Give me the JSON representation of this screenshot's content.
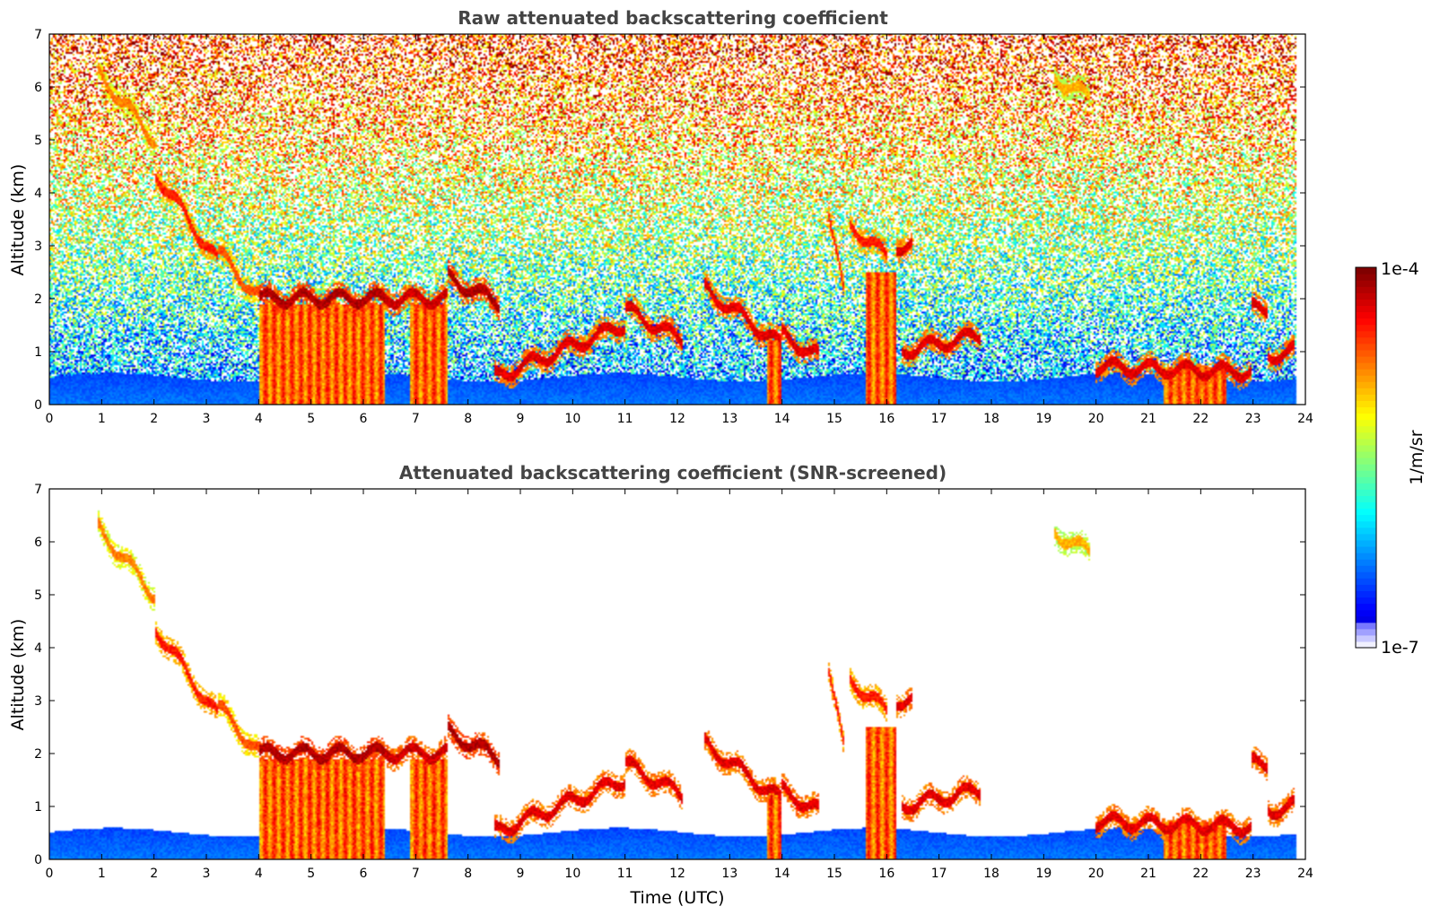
{
  "chart_data": [
    {
      "type": "heatmap",
      "title": "Raw attenuated backscattering coefficient",
      "xlabel": "",
      "ylabel": "Altitude (km)",
      "xlim": [
        0,
        24
      ],
      "ylim": [
        0,
        7
      ],
      "xticks": [
        "0",
        "1",
        "2",
        "3",
        "4",
        "5",
        "6",
        "7",
        "8",
        "9",
        "10",
        "11",
        "12",
        "13",
        "14",
        "15",
        "16",
        "17",
        "18",
        "19",
        "20",
        "21",
        "22",
        "23",
        "24"
      ],
      "yticks": [
        "0",
        "1",
        "2",
        "3",
        "4",
        "5",
        "6",
        "7"
      ],
      "grid": false,
      "screened": false,
      "features": {
        "boundary_layer_top_km": 0.5,
        "cloud_layers": [
          {
            "t0": 0.9,
            "t1": 2.0,
            "h0": 6.3,
            "h1": 5.0,
            "intensity": 0.75
          },
          {
            "t0": 2.0,
            "t1": 3.2,
            "h0": 4.4,
            "h1": 2.7,
            "intensity": 0.85
          },
          {
            "t0": 3.2,
            "t1": 4.0,
            "h0": 2.9,
            "h1": 2.0,
            "intensity": 0.8
          },
          {
            "t0": 4.0,
            "t1": 6.4,
            "h0": 2.0,
            "h1": 2.0,
            "intensity": 0.95
          },
          {
            "t0": 6.4,
            "t1": 7.6,
            "h0": 2.0,
            "h1": 2.0,
            "intensity": 0.92
          },
          {
            "t0": 7.6,
            "t1": 8.6,
            "h0": 2.4,
            "h1": 1.9,
            "intensity": 0.95
          },
          {
            "t0": 8.5,
            "t1": 11.0,
            "h0": 0.5,
            "h1": 1.5,
            "intensity": 0.9
          },
          {
            "t0": 11.0,
            "t1": 12.1,
            "h0": 1.8,
            "h1": 1.2,
            "intensity": 0.9
          },
          {
            "t0": 12.5,
            "t1": 14.0,
            "h0": 2.2,
            "h1": 1.1,
            "intensity": 0.9
          },
          {
            "t0": 14.0,
            "t1": 14.7,
            "h0": 1.3,
            "h1": 0.9,
            "intensity": 0.9
          },
          {
            "t0": 14.9,
            "t1": 15.2,
            "h0": 3.6,
            "h1": 2.0,
            "intensity": 0.85
          },
          {
            "t0": 15.3,
            "t1": 16.0,
            "h0": 3.4,
            "h1": 2.8,
            "intensity": 0.85
          },
          {
            "t0": 16.2,
            "t1": 16.5,
            "h0": 3.0,
            "h1": 3.0,
            "intensity": 0.9
          },
          {
            "t0": 16.3,
            "t1": 17.8,
            "h0": 1.0,
            "h1": 1.3,
            "intensity": 0.9
          },
          {
            "t0": 20.0,
            "t1": 23.0,
            "h0": 0.7,
            "h1": 0.6,
            "intensity": 0.9
          },
          {
            "t0": 23.0,
            "t1": 23.3,
            "h0": 1.8,
            "h1": 1.8,
            "intensity": 0.9
          },
          {
            "t0": 23.3,
            "t1": 23.8,
            "h0": 0.9,
            "h1": 1.0,
            "intensity": 0.9
          },
          {
            "t0": 19.2,
            "t1": 19.9,
            "h0": 6.2,
            "h1": 5.8,
            "intensity": 0.7
          }
        ],
        "precipitation_columns": [
          {
            "t0": 4.0,
            "t1": 6.4,
            "top_km": 1.9
          },
          {
            "t0": 6.9,
            "t1": 7.6,
            "top_km": 1.9
          },
          {
            "t0": 13.7,
            "t1": 14.0,
            "top_km": 1.2
          },
          {
            "t0": 15.6,
            "t1": 16.2,
            "top_km": 2.5
          },
          {
            "t0": 21.3,
            "t1": 22.5,
            "top_km": 0.7
          }
        ]
      }
    },
    {
      "type": "heatmap",
      "title": "Attenuated backscattering coefficient (SNR-screened)",
      "xlabel": "Time (UTC)",
      "ylabel": "Altitude (km)",
      "xlim": [
        0,
        24
      ],
      "ylim": [
        0,
        7
      ],
      "xticks": [
        "0",
        "1",
        "2",
        "3",
        "4",
        "5",
        "6",
        "7",
        "8",
        "9",
        "10",
        "11",
        "12",
        "13",
        "14",
        "15",
        "16",
        "17",
        "18",
        "19",
        "20",
        "21",
        "22",
        "23",
        "24"
      ],
      "yticks": [
        "0",
        "1",
        "2",
        "3",
        "4",
        "5",
        "6",
        "7"
      ],
      "grid": false,
      "screened": true
    }
  ],
  "colorbar": {
    "label": "1/m/sr",
    "min_label": "1e-7",
    "max_label": "1e-4",
    "scale": "log",
    "colormap": "jet",
    "low_end_colors": [
      "#f0f0ff",
      "#c8c8ff",
      "#a0a0ff",
      "#7878ff"
    ]
  }
}
